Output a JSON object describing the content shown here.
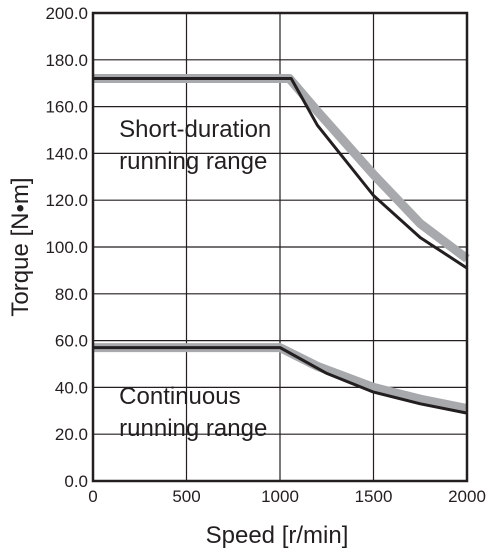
{
  "chart_data": {
    "type": "line",
    "xlabel": "Speed [r/min]",
    "ylabel": "Torque [N•m]",
    "xlim": [
      0,
      2000
    ],
    "ylim": [
      0,
      200
    ],
    "x_ticks": [
      "0",
      "500",
      "1000",
      "1500",
      "2000"
    ],
    "y_ticks": [
      "0.0",
      "20.0",
      "40.0",
      "60.0",
      "80.0",
      "100.0",
      "120.0",
      "140.0",
      "160.0",
      "180.0",
      "200.0"
    ],
    "grid": true,
    "annotations": [
      {
        "lines": [
          "Short-duration",
          "running range"
        ],
        "x": 140,
        "y": 147
      },
      {
        "lines": [
          "Continuous",
          "running range"
        ],
        "x": 140,
        "y": 33
      }
    ],
    "series": [
      {
        "group": "short-duration",
        "color": "#a7a9ac",
        "style": "wide",
        "points": [
          [
            0,
            172
          ],
          [
            1050,
            172
          ],
          [
            1200,
            158
          ],
          [
            1500,
            131
          ],
          [
            1750,
            110
          ],
          [
            2000,
            95
          ]
        ]
      },
      {
        "group": "short-duration",
        "color": "#231f20",
        "style": "thin",
        "points": [
          [
            0,
            172
          ],
          [
            1060,
            172
          ],
          [
            1200,
            152
          ],
          [
            1500,
            122
          ],
          [
            1750,
            104
          ],
          [
            2000,
            91
          ]
        ]
      },
      {
        "group": "continuous",
        "color": "#a7a9ac",
        "style": "wide",
        "points": [
          [
            0,
            57
          ],
          [
            1000,
            57
          ],
          [
            1200,
            49
          ],
          [
            1500,
            40
          ],
          [
            1750,
            35
          ],
          [
            2000,
            31
          ]
        ]
      },
      {
        "group": "continuous",
        "color": "#231f20",
        "style": "thin",
        "points": [
          [
            0,
            57
          ],
          [
            1000,
            57
          ],
          [
            1250,
            46
          ],
          [
            1500,
            38
          ],
          [
            1750,
            33
          ],
          [
            2000,
            29
          ]
        ]
      }
    ]
  }
}
